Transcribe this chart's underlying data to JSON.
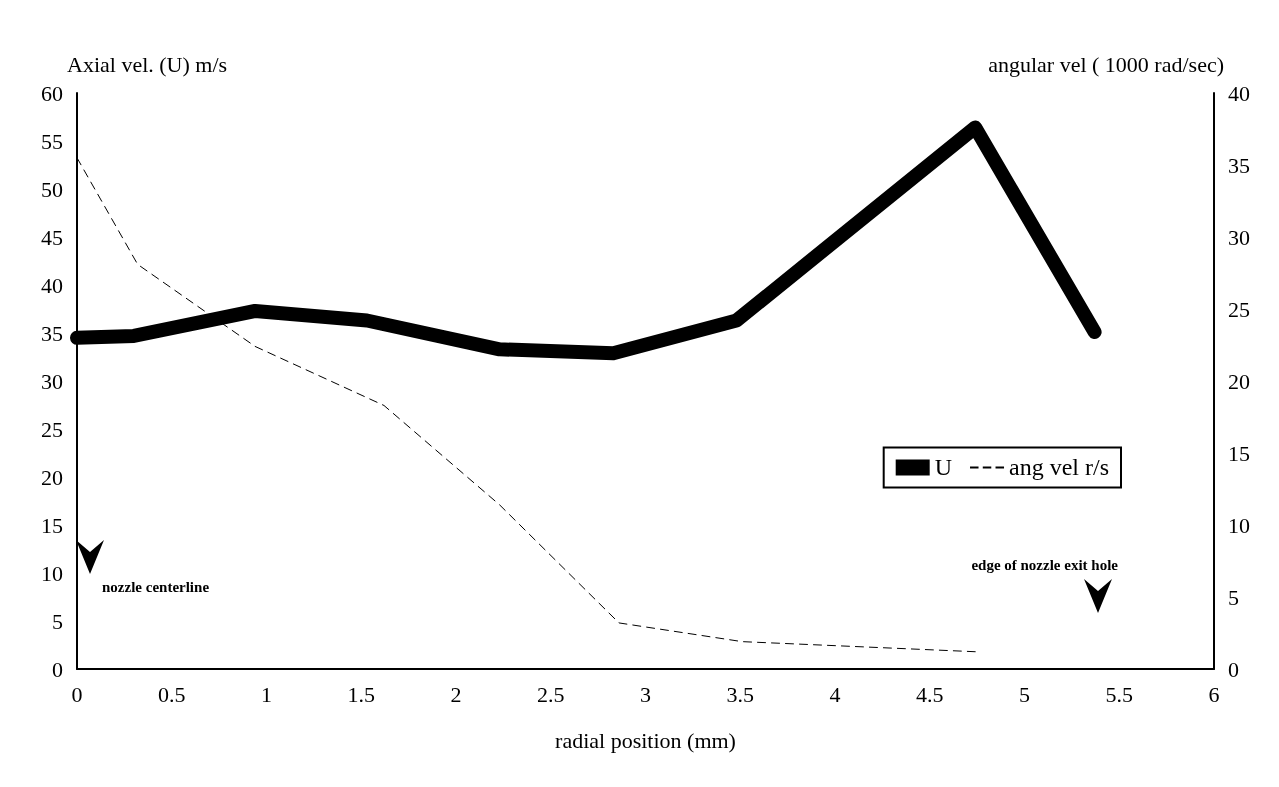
{
  "chart_data": {
    "type": "line",
    "xlabel": "radial position (mm)",
    "ylabel": "Axial vel. (U) m/s",
    "y2label": "angular vel ( 1000 rad/sec)",
    "xlim": [
      0,
      6
    ],
    "xticks": [
      0,
      0.5,
      1,
      1.5,
      2,
      2.5,
      3,
      3.5,
      4,
      4.5,
      5,
      5.5,
      6
    ],
    "ylim": [
      0,
      60
    ],
    "yticks": [
      0,
      5,
      10,
      15,
      20,
      25,
      30,
      35,
      40,
      45,
      50,
      55,
      60
    ],
    "y2lim": [
      0,
      40
    ],
    "y2ticks": [
      0,
      5,
      10,
      15,
      20,
      25,
      30,
      35,
      40
    ],
    "series": [
      {
        "name": "U",
        "color": "#000000",
        "x": [
          0,
          0.3,
          0.94,
          1.53,
          2.23,
          2.83,
          3.48,
          4.74,
          5.37
        ],
        "values": [
          34.5,
          34.7,
          37.3,
          36.3,
          33.3,
          32.9,
          36.3,
          56.4,
          35.1
        ]
      },
      {
        "name": "ang vel r/s",
        "color": "#000000",
        "axis": "y2",
        "line_style": "dashed",
        "x": [
          0,
          0.32,
          0.94,
          1.62,
          2.23,
          2.86,
          3.51,
          4.74
        ],
        "values": [
          35.5,
          28.1,
          22.4,
          18.3,
          11.4,
          3.2,
          1.9,
          1.2
        ]
      }
    ],
    "annotations": [
      "nozzle centerline",
      "edge of nozzle exit hole"
    ],
    "legend": "right",
    "grid": false,
    "marker": "none"
  }
}
